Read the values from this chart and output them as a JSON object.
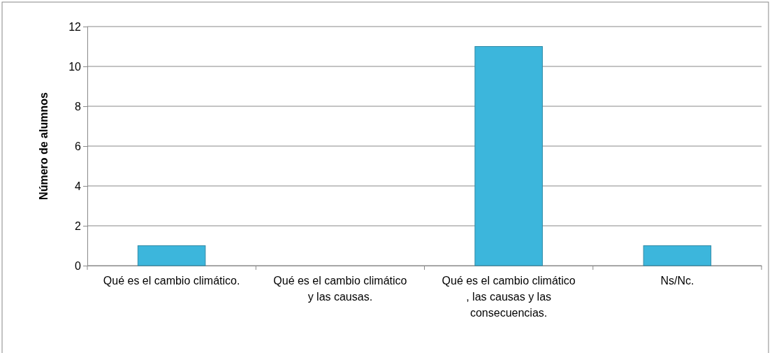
{
  "chart_data": {
    "type": "bar",
    "ylabel": "Número de alumnos",
    "categories": [
      "Qué es el cambio climático.",
      "Qué es el cambio climático y las causas.",
      "Qué es el cambio climático , las causas y las consecuencias.",
      "Ns/Nc."
    ],
    "values": [
      1,
      0,
      11,
      1
    ],
    "color": "#3cb6dc",
    "ylim": [
      0,
      12
    ],
    "yticks": [
      0,
      2,
      4,
      6,
      8,
      10,
      12
    ],
    "grid": "y"
  }
}
